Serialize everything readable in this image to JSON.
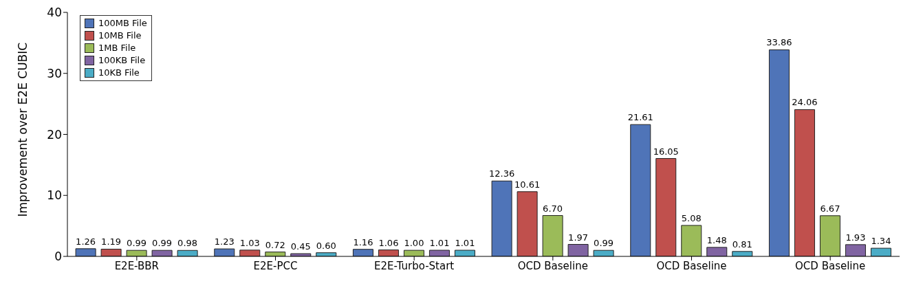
{
  "chart_data": {
    "type": "bar",
    "ylabel": "Improvement over E2E CUBIC",
    "categories": [
      "E2E-BBR",
      "E2E-PCC",
      "E2E-Turbo-Start",
      "OCD Baseline",
      "OCD Baseline",
      "OCD Baseline"
    ],
    "series": [
      {
        "name": "100MB File",
        "color": "#4f74b8",
        "values": [
          1.26,
          1.23,
          1.16,
          12.36,
          21.61,
          33.86
        ],
        "value_labels": [
          "1.26",
          "1.23",
          "1.16",
          "12.36",
          "21.61",
          "33.86"
        ]
      },
      {
        "name": "10MB File",
        "color": "#c0504d",
        "values": [
          1.19,
          1.03,
          1.06,
          10.61,
          16.05,
          24.06
        ],
        "value_labels": [
          "1.19",
          "1.03",
          "1.06",
          "10.61",
          "16.05",
          "24.06"
        ]
      },
      {
        "name": "1MB File",
        "color": "#9bbb59",
        "values": [
          0.99,
          0.72,
          1.0,
          6.7,
          5.08,
          6.67
        ],
        "value_labels": [
          "0.99",
          "0.72",
          "1.00",
          "6.70",
          "5.08",
          "6.67"
        ]
      },
      {
        "name": "100KB File",
        "color": "#8064a2",
        "values": [
          0.99,
          0.45,
          1.01,
          1.97,
          1.48,
          1.93
        ],
        "value_labels": [
          "0.99",
          "0.45",
          "1.01",
          "1.97",
          "1.48",
          "1.93"
        ]
      },
      {
        "name": "10KB File",
        "color": "#4bacc6",
        "values": [
          0.98,
          0.6,
          1.01,
          0.99,
          0.81,
          1.34
        ],
        "value_labels": [
          "0.98",
          "0.60",
          "1.01",
          "0.99",
          "0.81",
          "1.34"
        ]
      }
    ],
    "ylim": [
      0,
      40
    ],
    "yticks": [
      0,
      10,
      20,
      30,
      40
    ],
    "legend": "top left"
  }
}
